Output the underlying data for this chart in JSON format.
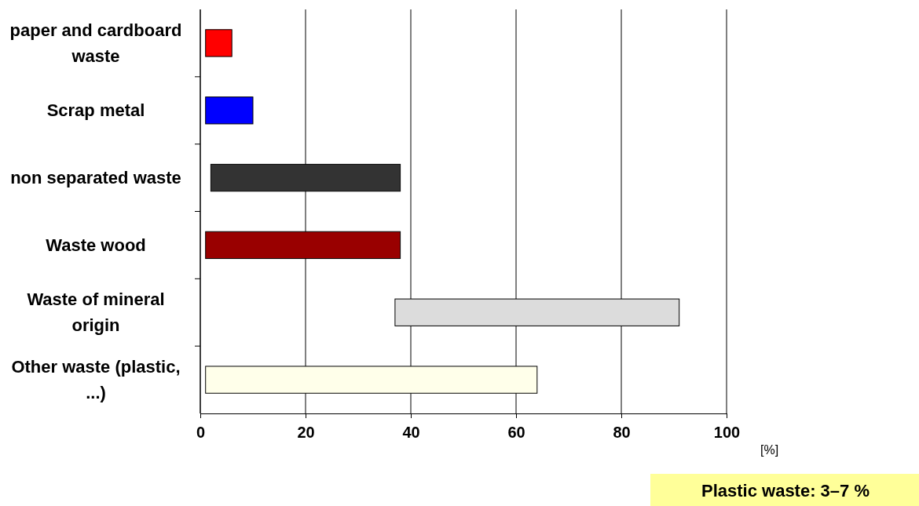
{
  "chart_data": {
    "type": "bar",
    "orientation": "horizontal",
    "categories": [
      "paper and cardboard waste",
      "Scrap metal",
      "non separated waste",
      "Waste wood",
      "Waste of mineral origin",
      "Other waste (plastic, ...)"
    ],
    "base": [
      1,
      1,
      2,
      1,
      37,
      1
    ],
    "values": [
      5,
      9,
      36,
      37,
      54,
      63
    ],
    "colors": [
      "#ff0000",
      "#0000ff",
      "#333333",
      "#990000",
      "#dcdcdc",
      "#ffffea"
    ],
    "xlim": [
      0,
      100
    ],
    "xticks": [
      0,
      20,
      40,
      60,
      80,
      100
    ],
    "xlabel": "[%]",
    "grid": "x",
    "annotations": [
      "Plastic waste: 3–7 %"
    ]
  }
}
